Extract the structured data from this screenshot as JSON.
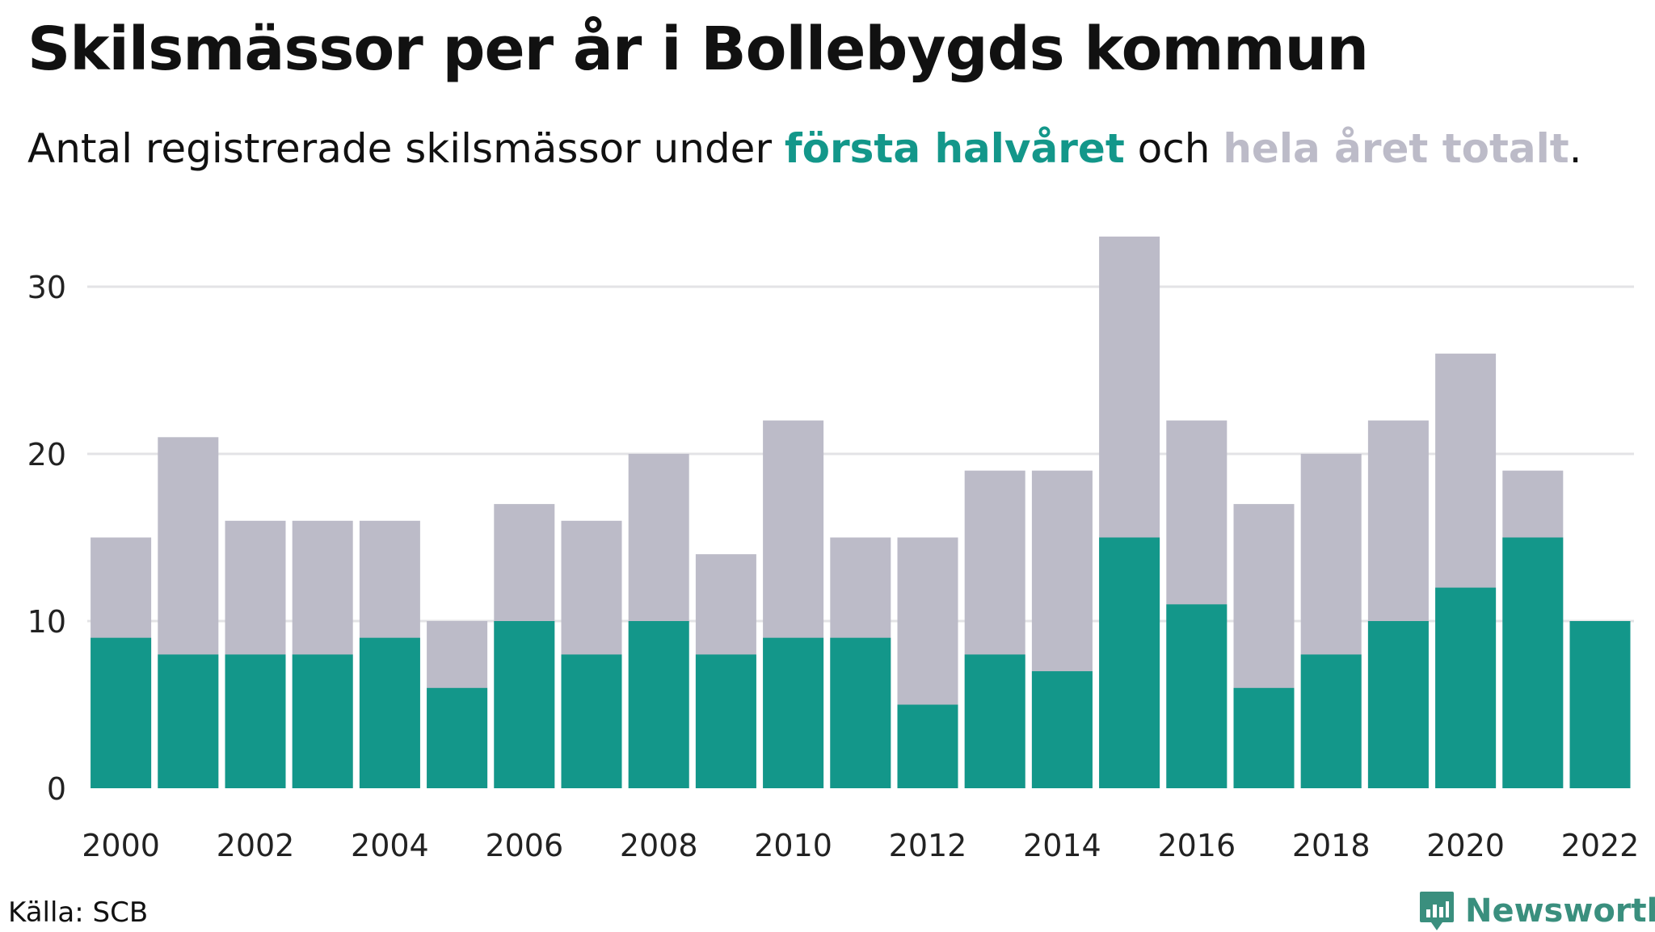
{
  "header": {
    "title": "Skilsmässor per år i Bollebygds kommun",
    "subtitle_prefix": "Antal registrerade skilsmässor under ",
    "subtitle_first": "första halvåret",
    "subtitle_mid": " och ",
    "subtitle_total": "hela året totalt",
    "subtitle_suffix": "."
  },
  "colors": {
    "first_half": "#13978a",
    "full_year": "#bcbbc8",
    "grid": "#e3e3e6",
    "brand": "#3a8f7e"
  },
  "chart_data": {
    "type": "bar",
    "stacked": "overlay",
    "x": [
      2000,
      2001,
      2002,
      2003,
      2004,
      2005,
      2006,
      2007,
      2008,
      2009,
      2010,
      2011,
      2012,
      2013,
      2014,
      2015,
      2016,
      2017,
      2018,
      2019,
      2020,
      2021,
      2022
    ],
    "series": [
      {
        "name": "hela året totalt",
        "values": [
          15,
          21,
          16,
          16,
          16,
          10,
          17,
          16,
          20,
          14,
          22,
          15,
          15,
          19,
          19,
          33,
          22,
          17,
          20,
          22,
          26,
          19,
          null
        ]
      },
      {
        "name": "första halvåret",
        "values": [
          9,
          8,
          8,
          8,
          9,
          6,
          10,
          8,
          10,
          8,
          9,
          9,
          5,
          8,
          7,
          15,
          11,
          6,
          8,
          10,
          12,
          15,
          10
        ]
      }
    ],
    "x_tick_labels": [
      "2000",
      "2002",
      "2004",
      "2006",
      "2008",
      "2010",
      "2012",
      "2014",
      "2016",
      "2018",
      "2020",
      "2022"
    ],
    "y_ticks": [
      0,
      10,
      20,
      30
    ],
    "ylim": [
      0,
      33
    ],
    "grid": true
  },
  "footer": {
    "source": "Källa: SCB",
    "brand": "Newsworthy",
    "brand_icon": "newsworthy-logo-icon"
  }
}
